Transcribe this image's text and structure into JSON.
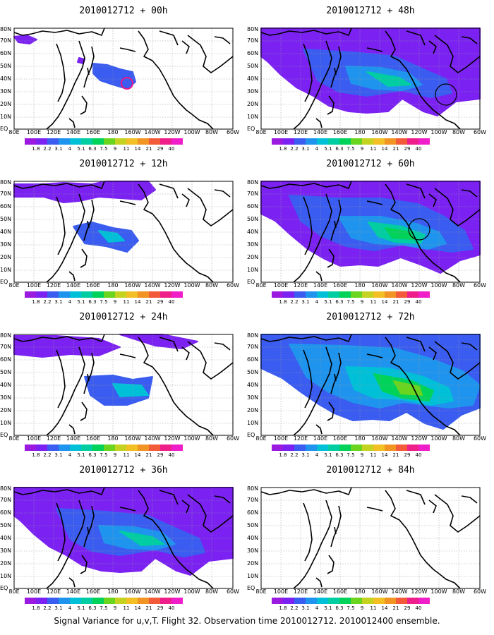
{
  "caption": "Signal Variance for u,v,T. Flight 32. Observation time 2010012712. 2010012400 ensemble.",
  "colorbar": {
    "labels": [
      "1.8",
      "2.2",
      "3.1",
      "4",
      "5.1",
      "6.3",
      "7.5",
      "9",
      "11",
      "14",
      "21",
      "29",
      "40"
    ],
    "colors": [
      "#9a1ae0",
      "#7b22f2",
      "#3a5cf0",
      "#1f94ee",
      "#00c0d8",
      "#00cea2",
      "#00d25a",
      "#6ad41e",
      "#c4d220",
      "#f2c024",
      "#f29424",
      "#f25a3a",
      "#ee1e8a",
      "#f01ec8"
    ]
  },
  "axes": {
    "lat_labels": [
      "80N",
      "70N",
      "60N",
      "50N",
      "40N",
      "30N",
      "20N",
      "10N",
      "EQ"
    ],
    "lon_labels": [
      "80E",
      "100E",
      "120E",
      "140E",
      "160E",
      "180",
      "160W",
      "140W",
      "120W",
      "100W",
      "80W",
      "60W"
    ]
  },
  "panels": [
    {
      "title": "2010012712 + 00h",
      "level": 0,
      "circle": "magenta"
    },
    {
      "title": "2010012712 + 48h",
      "level": 3,
      "circle": "black"
    },
    {
      "title": "2010012712 + 12h",
      "level": 1,
      "circle": "none"
    },
    {
      "title": "2010012712 + 60h",
      "level": 4,
      "circle": "black"
    },
    {
      "title": "2010012712 + 24h",
      "level": 2,
      "circle": "none"
    },
    {
      "title": "2010012712 + 72h",
      "level": 5,
      "circle": "none"
    },
    {
      "title": "2010012712 + 36h",
      "level": 3,
      "circle": "none"
    },
    {
      "title": "2010012712 + 84h",
      "level": 6,
      "circle": "none"
    }
  ]
}
